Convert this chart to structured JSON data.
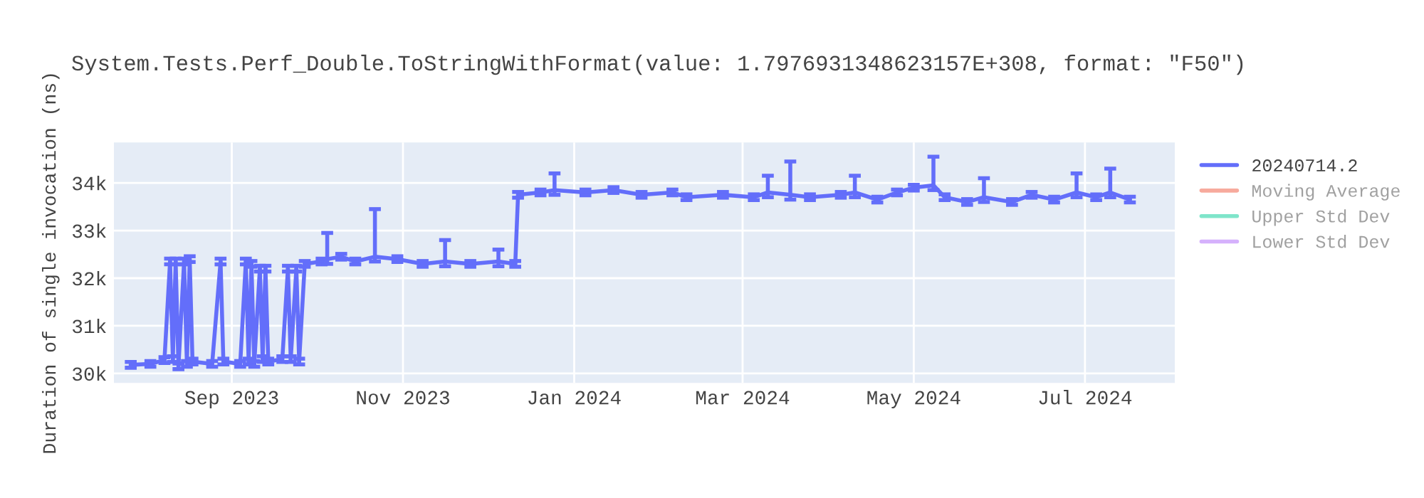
{
  "chart_data": {
    "type": "line",
    "title": "System.Tests.Perf_Double.ToStringWithFormat(value: 1.7976931348623157E+308, format: \"F50\")",
    "ylabel": "Duration of single invocation (ns)",
    "x": [
      "2023-07-27",
      "2023-08-03",
      "2023-08-08",
      "2023-08-10",
      "2023-08-11",
      "2023-08-12",
      "2023-08-13",
      "2023-08-15",
      "2023-08-16",
      "2023-08-17",
      "2023-08-18",
      "2023-08-25",
      "2023-08-28",
      "2023-08-29",
      "2023-09-04",
      "2023-09-06",
      "2023-09-07",
      "2023-09-08",
      "2023-09-09",
      "2023-09-11",
      "2023-09-12",
      "2023-09-13",
      "2023-09-14",
      "2023-09-19",
      "2023-09-21",
      "2023-09-22",
      "2023-09-24",
      "2023-09-25",
      "2023-09-27",
      "2023-10-03",
      "2023-10-05",
      "2023-10-10",
      "2023-10-15",
      "2023-10-22",
      "2023-10-30",
      "2023-11-08",
      "2023-11-16",
      "2023-11-25",
      "2023-12-05",
      "2023-12-11",
      "2023-12-12",
      "2023-12-20",
      "2023-12-25",
      "2024-01-05",
      "2024-01-15",
      "2024-01-25",
      "2024-02-05",
      "2024-02-10",
      "2024-02-23",
      "2024-03-05",
      "2024-03-10",
      "2024-03-18",
      "2024-03-25",
      "2024-04-05",
      "2024-04-10",
      "2024-04-18",
      "2024-04-25",
      "2024-05-01",
      "2024-05-08",
      "2024-05-12",
      "2024-05-20",
      "2024-05-26",
      "2024-06-05",
      "2024-06-12",
      "2024-06-20",
      "2024-06-28",
      "2024-07-05",
      "2024-07-10",
      "2024-07-17"
    ],
    "series": [
      {
        "name": "20240714.2",
        "color": "#636efa",
        "values": [
          30180,
          30200,
          30280,
          32350,
          30300,
          32350,
          30150,
          32350,
          30200,
          32400,
          30250,
          30200,
          32350,
          30250,
          30200,
          32350,
          30250,
          32300,
          30200,
          32200,
          30300,
          32200,
          30250,
          30300,
          32200,
          30300,
          32200,
          30250,
          32300,
          32350,
          32400,
          32450,
          32350,
          32450,
          32400,
          32300,
          32350,
          32300,
          32350,
          32300,
          33750,
          33800,
          33850,
          33800,
          33850,
          33750,
          33800,
          33700,
          33750,
          33700,
          33800,
          33750,
          33700,
          33750,
          33800,
          33650,
          33800,
          33900,
          33950,
          33700,
          33600,
          33700,
          33600,
          33750,
          33650,
          33800,
          33700,
          33800,
          33650
        ],
        "errors": [
          60,
          60,
          60,
          60,
          60,
          60,
          60,
          60,
          60,
          60,
          60,
          60,
          60,
          60,
          60,
          60,
          60,
          60,
          60,
          60,
          60,
          60,
          60,
          60,
          60,
          60,
          60,
          60,
          60,
          60,
          [
            32300,
            32950
          ],
          60,
          60,
          [
            32350,
            33450
          ],
          60,
          60,
          [
            32250,
            32800
          ],
          60,
          [
            32250,
            32600
          ],
          60,
          60,
          60,
          [
            33750,
            34200
          ],
          60,
          60,
          60,
          60,
          60,
          60,
          60,
          [
            33700,
            34150
          ],
          [
            33650,
            34450
          ],
          60,
          60,
          [
            33700,
            34150
          ],
          60,
          60,
          60,
          [
            33850,
            34550
          ],
          60,
          60,
          [
            33600,
            34100
          ],
          60,
          60,
          60,
          [
            33700,
            34200
          ],
          60,
          [
            33700,
            34300
          ],
          60
        ]
      },
      {
        "name": "Moving Average",
        "color": "#ef553b",
        "values": [
          null,
          null,
          null,
          null,
          null,
          null,
          null,
          null,
          null,
          null,
          null,
          null,
          null,
          null,
          null,
          null,
          null,
          null,
          null,
          null,
          null,
          null,
          null,
          null,
          null,
          null,
          null,
          null,
          null,
          null,
          null,
          null,
          null,
          null,
          null,
          null,
          null,
          null,
          null,
          null,
          null,
          null,
          null,
          null,
          null,
          null,
          null,
          null,
          null,
          null,
          null,
          null,
          null,
          null,
          null,
          null,
          null,
          null,
          null,
          null,
          null,
          null,
          null,
          null,
          null,
          null,
          null,
          null,
          null
        ]
      },
      {
        "name": "Upper Std Dev",
        "color": "#00cc96",
        "values": [
          null,
          null,
          null,
          null,
          null,
          null,
          null,
          null,
          null,
          null,
          null,
          null,
          null,
          null,
          null,
          null,
          null,
          null,
          null,
          null,
          null,
          null,
          null,
          null,
          null,
          null,
          null,
          null,
          null,
          null,
          null,
          null,
          null,
          null,
          null,
          null,
          null,
          null,
          null,
          null,
          null,
          null,
          null,
          null,
          null,
          null,
          null,
          null,
          null,
          null,
          null,
          null,
          null,
          null,
          null,
          null,
          null,
          null,
          null,
          null,
          null,
          null,
          null,
          null,
          null,
          null,
          null,
          null,
          null
        ]
      },
      {
        "name": "Lower Std Dev",
        "color": "#ab63fa",
        "values": [
          null,
          null,
          null,
          null,
          null,
          null,
          null,
          null,
          null,
          null,
          null,
          null,
          null,
          null,
          null,
          null,
          null,
          null,
          null,
          null,
          null,
          null,
          null,
          null,
          null,
          null,
          null,
          null,
          null,
          null,
          null,
          null,
          null,
          null,
          null,
          null,
          null,
          null,
          null,
          null,
          null,
          null,
          null,
          null,
          null,
          null,
          null,
          null,
          null,
          null,
          null,
          null,
          null,
          null,
          null,
          null,
          null,
          null,
          null,
          null,
          null,
          null,
          null,
          null,
          null,
          null,
          null,
          null,
          null
        ]
      }
    ],
    "xlim": [
      "2023-07-21",
      "2024-08-02"
    ],
    "xticks": [
      {
        "value": "2023-09-01",
        "label": "Sep 2023"
      },
      {
        "value": "2023-11-01",
        "label": "Nov 2023"
      },
      {
        "value": "2024-01-01",
        "label": "Jan 2024"
      },
      {
        "value": "2024-03-01",
        "label": "Mar 2024"
      },
      {
        "value": "2024-05-01",
        "label": "May 2024"
      },
      {
        "value": "2024-07-01",
        "label": "Jul 2024"
      }
    ],
    "ylim": [
      29800,
      34850
    ],
    "yticks": [
      {
        "value": 30000,
        "label": "30k"
      },
      {
        "value": 31000,
        "label": "31k"
      },
      {
        "value": 32000,
        "label": "32k"
      },
      {
        "value": 33000,
        "label": "33k"
      },
      {
        "value": 34000,
        "label": "34k"
      }
    ],
    "grid": true,
    "legend": "right",
    "line_style": "solid",
    "marker": "none"
  }
}
